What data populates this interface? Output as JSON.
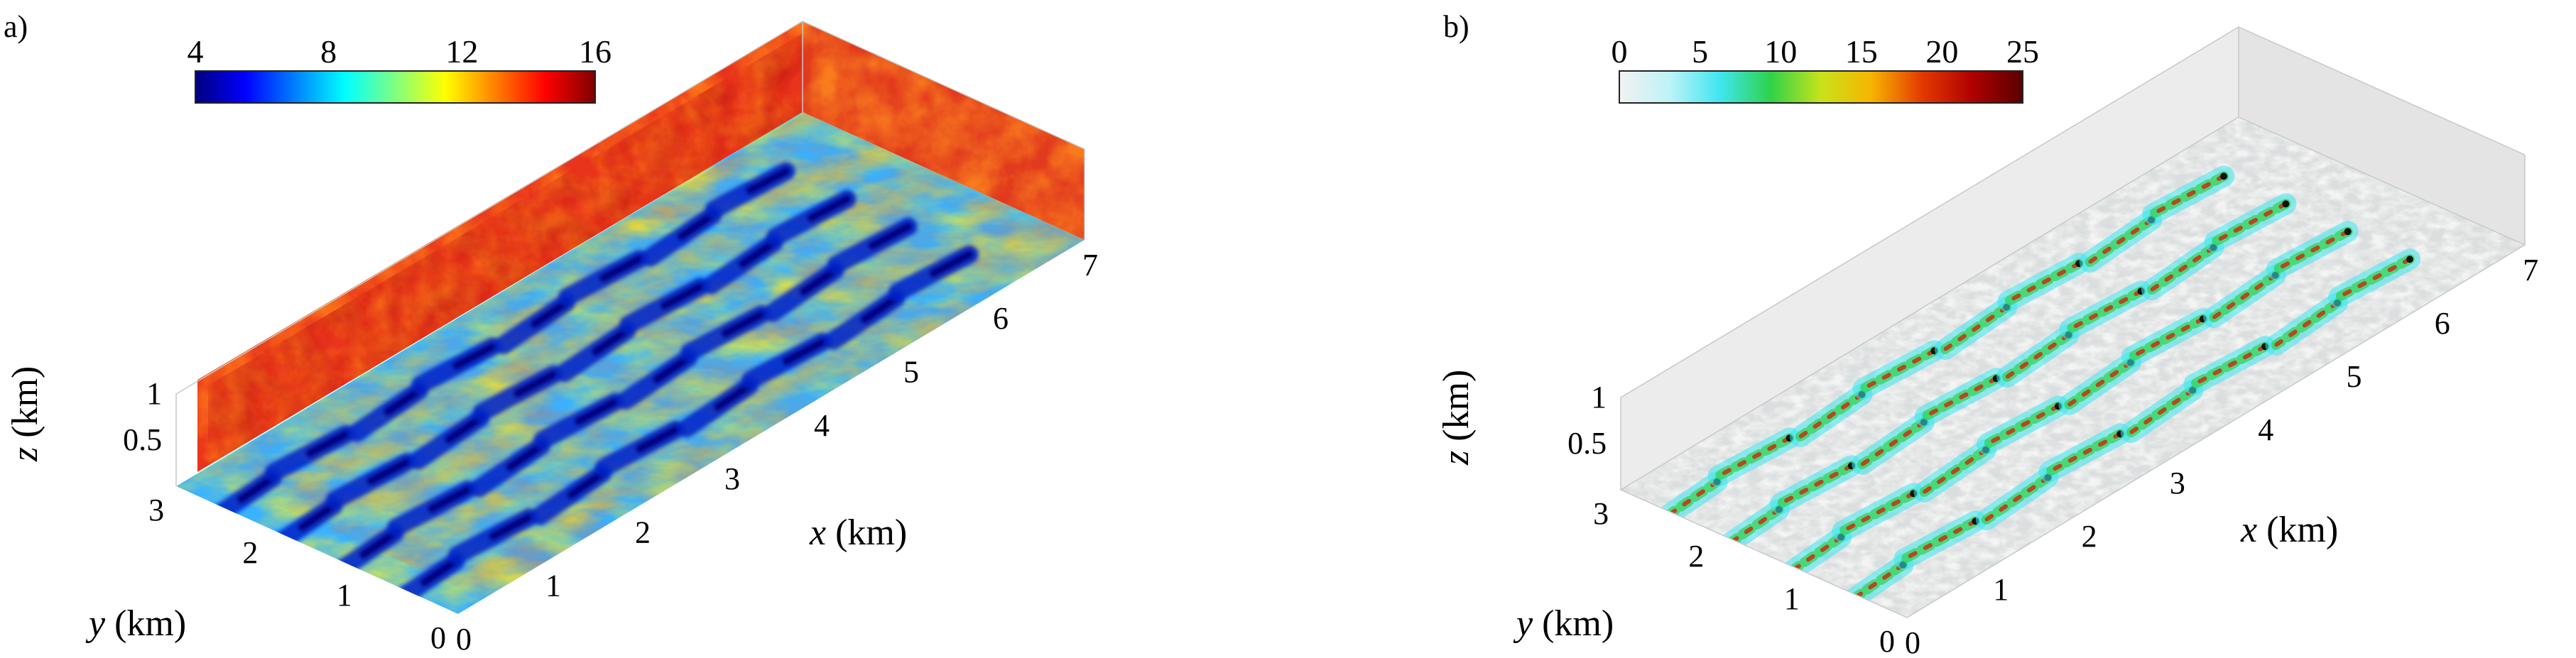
{
  "chart_data": [
    {
      "type": "heatmap",
      "panel_label": "a)",
      "colorbar": {
        "ticks": [
          "4",
          "8",
          "12",
          "16"
        ],
        "min": 4,
        "max": 16,
        "colormap": [
          "#00007f",
          "#0000ff",
          "#0080ff",
          "#00ffff",
          "#80ff80",
          "#ffff00",
          "#ff8000",
          "#ff0000",
          "#7f0000"
        ]
      },
      "axes": {
        "x": {
          "label": "x",
          "unit": "(km)",
          "ticks": [
            "0",
            "1",
            "2",
            "3",
            "4",
            "5",
            "6",
            "7"
          ],
          "range": [
            0,
            7
          ]
        },
        "y": {
          "label": "y",
          "unit": "(km)",
          "ticks": [
            "0",
            "1",
            "2",
            "3"
          ],
          "range": [
            0,
            3
          ]
        },
        "z": {
          "label": "z",
          "unit": "(km)",
          "ticks": [
            "0.5",
            "1"
          ],
          "range": [
            0,
            1
          ]
        }
      },
      "turbine_rows": 4,
      "turbines_per_row": 8
    },
    {
      "type": "heatmap",
      "panel_label": "b)",
      "colorbar": {
        "ticks": [
          "0",
          "5",
          "10",
          "15",
          "20",
          "25"
        ],
        "min": 0,
        "max": 25,
        "colormap": [
          "#f2f2f2",
          "#bdf3f7",
          "#3fe6f0",
          "#2fd24a",
          "#c8e31a",
          "#f7b400",
          "#e33a00",
          "#b00000",
          "#5a0000"
        ]
      },
      "axes": {
        "x": {
          "label": "x",
          "unit": "(km)",
          "ticks": [
            "0",
            "1",
            "2",
            "3",
            "4",
            "5",
            "6",
            "7"
          ],
          "range": [
            0,
            7
          ]
        },
        "y": {
          "label": "y",
          "unit": "(km)",
          "ticks": [
            "0",
            "1",
            "2",
            "3"
          ],
          "range": [
            0,
            3
          ]
        },
        "z": {
          "label": "z",
          "unit": "(km)",
          "ticks": [
            "0.5",
            "1"
          ],
          "range": [
            0,
            1
          ]
        }
      },
      "turbine_rows": 4,
      "turbines_per_row": 8
    }
  ]
}
